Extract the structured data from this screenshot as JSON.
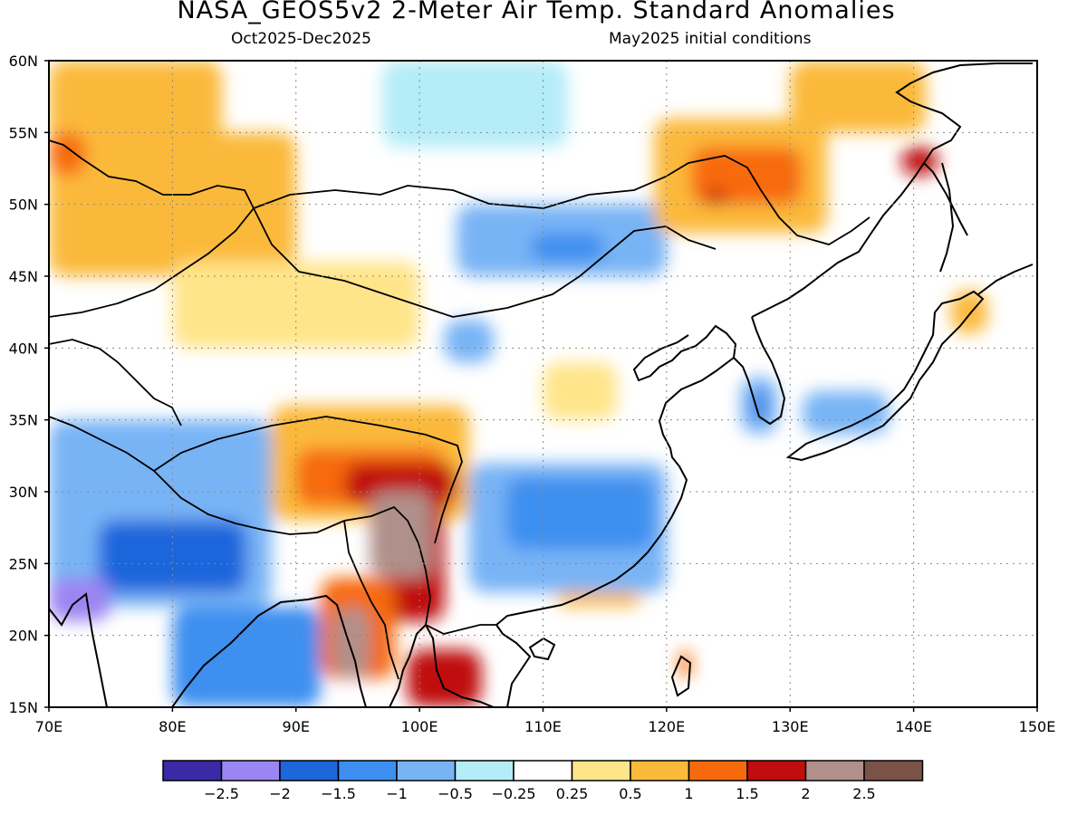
{
  "header": {
    "title": "NASA_GEOS5v2 2-Meter Air Temp. Standard Anomalies",
    "period": "Oct2025-Dec2025",
    "init": "May2025 initial conditions"
  },
  "map": {
    "lon_range": [
      70,
      150
    ],
    "lat_range": [
      15,
      60
    ],
    "lon_ticks": [
      "70E",
      "80E",
      "90E",
      "100E",
      "110E",
      "120E",
      "130E",
      "140E",
      "150E"
    ],
    "lat_ticks": [
      "15N",
      "20N",
      "25N",
      "30N",
      "35N",
      "40N",
      "45N",
      "50N",
      "55N",
      "60N"
    ],
    "gridlines": "dotted"
  },
  "colorbar": {
    "colors": [
      "#3a2aa6",
      "#9b85f2",
      "#1e66dc",
      "#3c8ff0",
      "#78b4f5",
      "#b4ecf8",
      "#ffffff",
      "#ffe58a",
      "#fbb93a",
      "#f76a0c",
      "#c00d0d",
      "#b0908a",
      "#7a5248"
    ],
    "labels": [
      "-2.5",
      "-2",
      "-1.5",
      "-1",
      "-0.5",
      "-0.25",
      "0.25",
      "0.5",
      "1",
      "1.5",
      "2",
      "2.5"
    ]
  },
  "chart_data": {
    "type": "heatmap",
    "title": "NASA_GEOS5v2 2-Meter Air Temp. Standard Anomalies",
    "subtitle": "Oct2025-Dec2025",
    "xlim": [
      70,
      150
    ],
    "ylim": [
      15,
      60
    ],
    "levels": [
      -2.5,
      -2,
      -1.5,
      -1,
      -0.5,
      -0.25,
      0.25,
      0.5,
      1,
      1.5,
      2,
      2.5
    ],
    "regions": [
      {
        "lon": [
          70,
          84
        ],
        "lat": [
          53,
          60
        ],
        "value": 0.75
      },
      {
        "lon": [
          70,
          90
        ],
        "lat": [
          45,
          55
        ],
        "value": 0.75
      },
      {
        "lon": [
          70,
          73
        ],
        "lat": [
          52,
          55
        ],
        "value": 1.25
      },
      {
        "lon": [
          80,
          100
        ],
        "lat": [
          40,
          46
        ],
        "value": 0.4
      },
      {
        "lon": [
          97,
          112
        ],
        "lat": [
          54,
          60
        ],
        "value": -0.3
      },
      {
        "lon": [
          103,
          120
        ],
        "lat": [
          45,
          50
        ],
        "value": -0.75
      },
      {
        "lon": [
          109,
          115
        ],
        "lat": [
          46,
          48
        ],
        "value": -1.25
      },
      {
        "lon": [
          102,
          106
        ],
        "lat": [
          39,
          42
        ],
        "value": -0.75
      },
      {
        "lon": [
          110,
          116
        ],
        "lat": [
          35,
          39
        ],
        "value": 0.4
      },
      {
        "lon": [
          119,
          133
        ],
        "lat": [
          48,
          56
        ],
        "value": 0.75
      },
      {
        "lon": [
          122,
          131
        ],
        "lat": [
          50,
          54
        ],
        "value": 1.25
      },
      {
        "lon": [
          123,
          125
        ],
        "lat": [
          50,
          51
        ],
        "value": 1.75
      },
      {
        "lon": [
          130,
          141
        ],
        "lat": [
          55,
          60
        ],
        "value": 0.75
      },
      {
        "lon": [
          139,
          142
        ],
        "lat": [
          52,
          54
        ],
        "value": 1.75
      },
      {
        "lon": [
          143,
          146
        ],
        "lat": [
          41,
          44
        ],
        "value": 0.75
      },
      {
        "lon": [
          70,
          88
        ],
        "lat": [
          22,
          35
        ],
        "value": -1.0
      },
      {
        "lon": [
          74,
          86
        ],
        "lat": [
          23,
          28
        ],
        "value": -1.75
      },
      {
        "lon": [
          70,
          75
        ],
        "lat": [
          21,
          24
        ],
        "value": -2.25
      },
      {
        "lon": [
          75,
          82
        ],
        "lat": [
          23,
          26
        ],
        "value": -2.0
      },
      {
        "lon": [
          80,
          92
        ],
        "lat": [
          15,
          22
        ],
        "value": -1.25
      },
      {
        "lon": [
          88,
          104
        ],
        "lat": [
          28,
          36
        ],
        "value": 0.75
      },
      {
        "lon": [
          90,
          102
        ],
        "lat": [
          29,
          33
        ],
        "value": 1.25
      },
      {
        "lon": [
          94,
          103
        ],
        "lat": [
          29,
          32
        ],
        "value": 1.75
      },
      {
        "lon": [
          97,
          102
        ],
        "lat": [
          21,
          31
        ],
        "value": 1.75
      },
      {
        "lon": [
          96,
          101
        ],
        "lat": [
          24,
          30
        ],
        "value": 2.25
      },
      {
        "lon": [
          92,
          98
        ],
        "lat": [
          17,
          24
        ],
        "value": 1.25
      },
      {
        "lon": [
          93,
          96
        ],
        "lat": [
          17,
          22
        ],
        "value": 2.25
      },
      {
        "lon": [
          99,
          105
        ],
        "lat": [
          15,
          19
        ],
        "value": 1.75
      },
      {
        "lon": [
          104,
          120
        ],
        "lat": [
          23,
          32
        ],
        "value": -1.0
      },
      {
        "lon": [
          107,
          119
        ],
        "lat": [
          26,
          31
        ],
        "value": -1.25
      },
      {
        "lon": [
          111,
          118
        ],
        "lat": [
          22,
          23
        ],
        "value": 0.5
      },
      {
        "lon": [
          126,
          129
        ],
        "lat": [
          34,
          38
        ],
        "value": -1.0
      },
      {
        "lon": [
          127,
          128
        ],
        "lat": [
          35,
          37
        ],
        "value": -2.0
      },
      {
        "lon": [
          131,
          138
        ],
        "lat": [
          34,
          37
        ],
        "value": -0.75
      },
      {
        "lon": [
          121,
          122
        ],
        "lat": [
          17,
          19
        ],
        "value": 1.25
      }
    ]
  }
}
